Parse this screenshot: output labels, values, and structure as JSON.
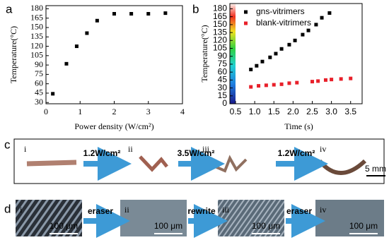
{
  "chart_data": [
    {
      "type": "scatter",
      "panel": "a",
      "x_label": "Power density (W/cm²)",
      "y_label": "Temperature(°C)",
      "x": [
        0.2,
        0.6,
        0.9,
        1.2,
        1.5,
        2.0,
        2.5,
        3.0,
        3.5
      ],
      "values": [
        44,
        92,
        120,
        141,
        161,
        172,
        172,
        172,
        173
      ],
      "color": "#000000",
      "xlim": [
        0,
        4
      ],
      "xticks": [
        0,
        1,
        2,
        3,
        4
      ],
      "ylim": [
        28,
        185
      ],
      "yticks": [
        30,
        45,
        60,
        75,
        90,
        105,
        120,
        135,
        150,
        165,
        180
      ]
    },
    {
      "type": "scatter",
      "panel": "b",
      "x_label": "Time (s)",
      "y_label": "Temperature(°C)",
      "series": [
        {
          "name": "gns-vitrimers",
          "color": "#000000",
          "x": [
            0.9,
            1.05,
            1.2,
            1.4,
            1.55,
            1.7,
            1.9,
            2.05,
            2.25,
            2.4,
            2.6,
            2.75,
            2.95
          ],
          "values": [
            65,
            72,
            80,
            88,
            95,
            104,
            112,
            120,
            131,
            139,
            150,
            163,
            172
          ]
        },
        {
          "name": "blank-vitrimers",
          "color": "#e8202a",
          "x": [
            0.9,
            1.1,
            1.3,
            1.5,
            1.7,
            1.9,
            2.1,
            2.5,
            2.65,
            2.85,
            3.0,
            3.25,
            3.5
          ],
          "values": [
            32,
            34,
            35,
            36,
            37,
            39,
            40,
            42,
            43,
            45,
            46,
            47,
            48
          ]
        }
      ],
      "xlim": [
        0.5,
        3.8
      ],
      "xticks": [
        0.5,
        {
          "value": 1,
          "label": "1.0"
        },
        1.5,
        {
          "value": 2,
          "label": "2.0"
        },
        2.5,
        {
          "value": 3,
          "label": "3.0"
        },
        3.5
      ],
      "ylim": [
        0,
        190
      ],
      "yticks": [
        0,
        15,
        30,
        45,
        60,
        75,
        90,
        105,
        120,
        135,
        150,
        165,
        180
      ]
    }
  ],
  "panel_c": {
    "label": "c",
    "stages": [
      "i",
      "ii",
      "iii",
      "iv"
    ],
    "steps": [
      "1.2W/cm²",
      "3.5W/cm²",
      "1.2W/cm²"
    ],
    "scale_bar": "5 mm"
  },
  "panel_d": {
    "label": "d",
    "stages": [
      "i",
      "ii",
      "iii",
      "iv"
    ],
    "steps": [
      "eraser",
      "rewrite",
      "eraser"
    ],
    "scale_bars": [
      "100 μm",
      "100 μm",
      "100 μm",
      "100 μm"
    ]
  }
}
